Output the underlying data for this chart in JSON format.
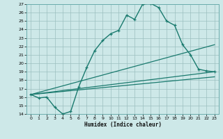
{
  "title": "",
  "xlabel": "Humidex (Indice chaleur)",
  "ylabel": "",
  "xlim": [
    -0.5,
    23.5
  ],
  "ylim": [
    14,
    27
  ],
  "xticks": [
    0,
    1,
    2,
    3,
    4,
    5,
    6,
    7,
    8,
    9,
    10,
    11,
    12,
    13,
    14,
    15,
    16,
    17,
    18,
    19,
    20,
    21,
    22,
    23
  ],
  "yticks": [
    14,
    15,
    16,
    17,
    18,
    19,
    20,
    21,
    22,
    23,
    24,
    25,
    26,
    27
  ],
  "bg_color": "#cde8e8",
  "line_color": "#1a7a6e",
  "curve1_x": [
    0,
    1,
    2,
    3,
    4,
    5,
    6,
    7,
    8,
    9,
    10,
    11,
    12,
    13,
    14,
    15,
    16,
    17,
    18,
    19,
    20,
    21,
    22,
    23
  ],
  "curve1_y": [
    16.3,
    15.9,
    16.0,
    14.8,
    14.0,
    14.3,
    17.2,
    19.5,
    21.5,
    22.7,
    23.5,
    23.9,
    25.7,
    25.2,
    27.0,
    27.1,
    26.6,
    25.0,
    24.5,
    22.2,
    21.0,
    19.3,
    19.1,
    19.0
  ],
  "curve2_x": [
    0,
    23
  ],
  "curve2_y": [
    16.3,
    22.2
  ],
  "curve3_x": [
    0,
    23
  ],
  "curve3_y": [
    16.3,
    19.0
  ],
  "curve4_x": [
    0,
    23
  ],
  "curve4_y": [
    16.3,
    18.4
  ]
}
